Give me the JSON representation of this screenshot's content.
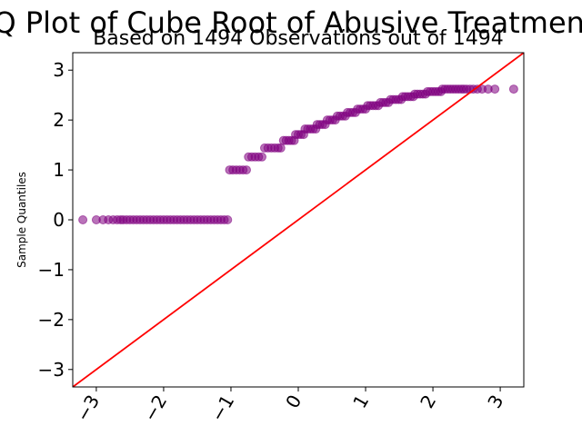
{
  "chart_data": {
    "type": "scatter",
    "title": "Q-Q Plot of Cube Root of Abusive Treatment-P",
    "subtitle": "Based on 1494 Observations out of 1494",
    "xlabel": "",
    "ylabel": "Sample Quantiles",
    "xlim": [
      -3.35,
      3.35
    ],
    "ylim": [
      -3.35,
      3.35
    ],
    "xticks": [
      -3,
      -2,
      -1,
      0,
      1,
      2,
      3
    ],
    "yticks": [
      -3,
      -2,
      -1,
      0,
      1,
      2,
      3
    ],
    "xtick_labels": [
      "−3",
      "−2",
      "−1",
      "0",
      "1",
      "2",
      "3"
    ],
    "ytick_labels": [
      "−3",
      "−2",
      "−1",
      "0",
      "1",
      "2",
      "3"
    ],
    "xtick_rotation": 60,
    "grid": false,
    "point_color": "#800080",
    "point_alpha": 0.55,
    "line_color": "#ff0000",
    "reference_line": {
      "slope": 1,
      "intercept": 0
    },
    "series": [
      {
        "points": [
          [
            -3.2,
            0
          ],
          [
            -3.0,
            0
          ],
          [
            -2.9,
            0
          ],
          [
            -2.82,
            0
          ],
          [
            -2.75,
            0
          ],
          [
            -2.69,
            0
          ],
          [
            -2.64,
            0
          ],
          [
            -2.6,
            0
          ],
          [
            -2.55,
            0
          ],
          [
            -2.5,
            0
          ],
          [
            -2.45,
            0
          ],
          [
            -2.4,
            0
          ],
          [
            -2.35,
            0
          ],
          [
            -2.3,
            0
          ],
          [
            -2.25,
            0
          ],
          [
            -2.2,
            0
          ],
          [
            -2.15,
            0
          ],
          [
            -2.1,
            0
          ],
          [
            -2.05,
            0
          ],
          [
            -2.0,
            0
          ],
          [
            -1.95,
            0
          ],
          [
            -1.9,
            0
          ],
          [
            -1.85,
            0
          ],
          [
            -1.8,
            0
          ],
          [
            -1.75,
            0
          ],
          [
            -1.7,
            0
          ],
          [
            -1.65,
            0
          ],
          [
            -1.6,
            0
          ],
          [
            -1.55,
            0
          ],
          [
            -1.5,
            0
          ],
          [
            -1.45,
            0
          ],
          [
            -1.4,
            0
          ],
          [
            -1.35,
            0
          ],
          [
            -1.3,
            0
          ],
          [
            -1.25,
            0
          ],
          [
            -1.2,
            0
          ],
          [
            -1.15,
            0
          ],
          [
            -1.1,
            0
          ],
          [
            -1.05,
            0
          ],
          [
            -1.02,
            1.0
          ],
          [
            -0.97,
            1.0
          ],
          [
            -0.92,
            1.0
          ],
          [
            -0.87,
            1.0
          ],
          [
            -0.82,
            1.0
          ],
          [
            -0.77,
            1.0
          ],
          [
            -0.74,
            1.26
          ],
          [
            -0.69,
            1.26
          ],
          [
            -0.64,
            1.26
          ],
          [
            -0.59,
            1.26
          ],
          [
            -0.54,
            1.26
          ],
          [
            -0.5,
            1.44
          ],
          [
            -0.45,
            1.44
          ],
          [
            -0.4,
            1.44
          ],
          [
            -0.35,
            1.44
          ],
          [
            -0.3,
            1.44
          ],
          [
            -0.26,
            1.44
          ],
          [
            -0.22,
            1.59
          ],
          [
            -0.18,
            1.59
          ],
          [
            -0.14,
            1.59
          ],
          [
            -0.1,
            1.59
          ],
          [
            -0.06,
            1.59
          ],
          [
            -0.04,
            1.71
          ],
          [
            0.0,
            1.71
          ],
          [
            0.04,
            1.71
          ],
          [
            0.08,
            1.71
          ],
          [
            0.1,
            1.82
          ],
          [
            0.14,
            1.82
          ],
          [
            0.18,
            1.82
          ],
          [
            0.22,
            1.82
          ],
          [
            0.26,
            1.82
          ],
          [
            0.28,
            1.91
          ],
          [
            0.32,
            1.91
          ],
          [
            0.36,
            1.91
          ],
          [
            0.4,
            1.91
          ],
          [
            0.43,
            2.0
          ],
          [
            0.47,
            2.0
          ],
          [
            0.51,
            2.0
          ],
          [
            0.55,
            2.0
          ],
          [
            0.58,
            2.08
          ],
          [
            0.62,
            2.08
          ],
          [
            0.66,
            2.08
          ],
          [
            0.7,
            2.08
          ],
          [
            0.73,
            2.15
          ],
          [
            0.77,
            2.15
          ],
          [
            0.81,
            2.15
          ],
          [
            0.85,
            2.15
          ],
          [
            0.88,
            2.22
          ],
          [
            0.92,
            2.22
          ],
          [
            0.96,
            2.22
          ],
          [
            1.0,
            2.22
          ],
          [
            1.03,
            2.29
          ],
          [
            1.07,
            2.29
          ],
          [
            1.11,
            2.29
          ],
          [
            1.15,
            2.29
          ],
          [
            1.19,
            2.29
          ],
          [
            1.22,
            2.35
          ],
          [
            1.26,
            2.35
          ],
          [
            1.3,
            2.35
          ],
          [
            1.34,
            2.35
          ],
          [
            1.37,
            2.41
          ],
          [
            1.41,
            2.41
          ],
          [
            1.45,
            2.41
          ],
          [
            1.49,
            2.41
          ],
          [
            1.53,
            2.41
          ],
          [
            1.55,
            2.47
          ],
          [
            1.59,
            2.47
          ],
          [
            1.63,
            2.47
          ],
          [
            1.67,
            2.47
          ],
          [
            1.71,
            2.47
          ],
          [
            1.73,
            2.52
          ],
          [
            1.77,
            2.52
          ],
          [
            1.81,
            2.52
          ],
          [
            1.85,
            2.52
          ],
          [
            1.89,
            2.52
          ],
          [
            1.92,
            2.57
          ],
          [
            1.96,
            2.57
          ],
          [
            2.0,
            2.57
          ],
          [
            2.04,
            2.57
          ],
          [
            2.08,
            2.57
          ],
          [
            2.12,
            2.57
          ],
          [
            2.14,
            2.62
          ],
          [
            2.18,
            2.62
          ],
          [
            2.22,
            2.62
          ],
          [
            2.26,
            2.62
          ],
          [
            2.3,
            2.62
          ],
          [
            2.34,
            2.62
          ],
          [
            2.38,
            2.62
          ],
          [
            2.42,
            2.62
          ],
          [
            2.46,
            2.62
          ],
          [
            2.5,
            2.62
          ],
          [
            2.55,
            2.62
          ],
          [
            2.6,
            2.62
          ],
          [
            2.66,
            2.62
          ],
          [
            2.73,
            2.62
          ],
          [
            2.82,
            2.62
          ],
          [
            2.92,
            2.62
          ],
          [
            3.2,
            2.62
          ]
        ]
      }
    ]
  }
}
